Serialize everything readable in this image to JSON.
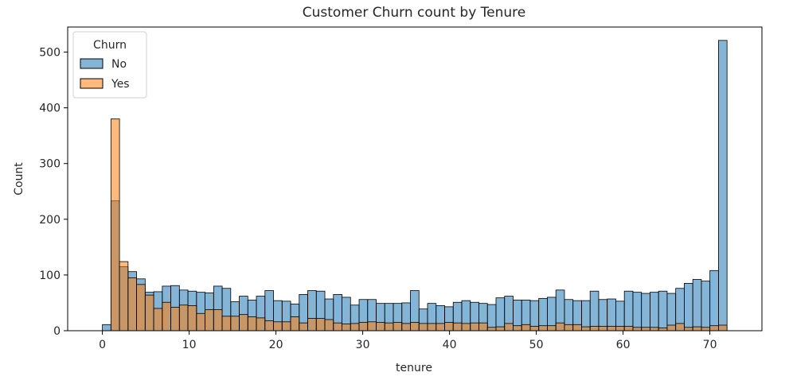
{
  "chart_data": {
    "type": "bar",
    "title": "Customer Churn count by Tenure",
    "xlabel": "tenure",
    "ylabel": "Count",
    "xlim": [
      -4,
      76
    ],
    "ylim": [
      0,
      545
    ],
    "xticks": [
      0,
      10,
      20,
      30,
      40,
      50,
      60,
      70
    ],
    "yticks": [
      0,
      100,
      200,
      300,
      400,
      500
    ],
    "bin_start": 0,
    "bin_width": 0.986,
    "legend": {
      "title": "Churn",
      "position": "upper-left"
    },
    "series": [
      {
        "name": "No",
        "color": "#1f77b4",
        "values": [
          11,
          233,
          115,
          106,
          93,
          69,
          70,
          80,
          81,
          73,
          71,
          69,
          68,
          80,
          76,
          52,
          62,
          55,
          62,
          72,
          54,
          53,
          48,
          65,
          72,
          71,
          57,
          65,
          60,
          46,
          56,
          56,
          49,
          49,
          49,
          50,
          72,
          39,
          49,
          45,
          43,
          51,
          54,
          51,
          49,
          47,
          59,
          62,
          55,
          55,
          54,
          58,
          60,
          73,
          56,
          54,
          54,
          71,
          56,
          57,
          53,
          71,
          69,
          67,
          69,
          71,
          67,
          76,
          85,
          92,
          89,
          108,
          521
        ]
      },
      {
        "name": "Yes",
        "color": "#ff7f0e",
        "values": [
          0,
          380,
          124,
          95,
          83,
          64,
          40,
          51,
          42,
          46,
          45,
          31,
          38,
          38,
          26,
          26,
          29,
          25,
          23,
          18,
          16,
          16,
          25,
          14,
          22,
          22,
          20,
          14,
          12,
          13,
          15,
          16,
          15,
          14,
          15,
          13,
          15,
          13,
          13,
          13,
          15,
          14,
          13,
          14,
          14,
          6,
          7,
          13,
          9,
          11,
          8,
          9,
          9,
          14,
          11,
          11,
          7,
          8,
          8,
          8,
          8,
          8,
          6,
          6,
          6,
          5,
          10,
          13,
          6,
          7,
          6,
          9,
          10
        ]
      }
    ]
  }
}
